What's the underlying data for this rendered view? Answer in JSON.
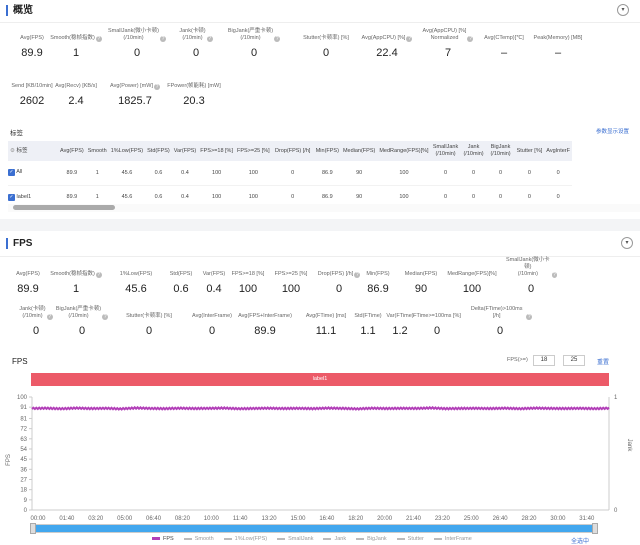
{
  "overview": {
    "title": "概览",
    "collapse_icon": "chevron-down-icon",
    "metrics_row1": [
      {
        "label": "Avg(FPS)",
        "value": "89.9"
      },
      {
        "label": "Smooth(稳帧指数)",
        "value": "1",
        "help": true
      },
      {
        "label": "SmallJank(微小卡顿)\n(/10min)",
        "value": "0",
        "help": true
      },
      {
        "label": "Jank(卡顿)\n(/10min)",
        "value": "0",
        "help": true
      },
      {
        "label": "BigJank(严重卡顿)\n(/10min)",
        "value": "0",
        "help": true
      },
      {
        "label": "Stutter(卡顿率) [%]",
        "value": "0"
      },
      {
        "label": "Avg(AppCPU) [%]",
        "value": "22.4",
        "help": true
      },
      {
        "label": "Avg(AppCPU) [%]\nNormalized",
        "value": "7",
        "help": true
      },
      {
        "label": "Avg(CTemp)[℃]",
        "value": "–"
      },
      {
        "label": "Peak(Memory) [MB]",
        "value": "–"
      }
    ],
    "metrics_row2": [
      {
        "label": "Send [KB/10min]",
        "value": "2602"
      },
      {
        "label": "Avg(Recv) [KB/s]",
        "value": "2.4"
      },
      {
        "label": "Avg(Power) [mW]",
        "value": "1825.7",
        "help": true
      },
      {
        "label": "FPower(帧能耗) [mW]",
        "value": "20.3"
      }
    ]
  },
  "labels_table": {
    "title": "标签",
    "settings_link": "参数显示设置",
    "columns": [
      "标签",
      "Avg(FPS)",
      "Smooth",
      "1%Low(FPS)",
      "Std(FPS)",
      "Var(FPS)",
      "FPS>=18 [%]",
      "FPS>=25 [%]",
      "Drop(FPS) [/h]",
      "Min(FPS)",
      "Median(FPS)",
      "MedRange(FPS)[%]",
      "SmallJank\n(/10min)",
      "Jank\n(/10min)",
      "BigJank\n(/10min)",
      "Stutter [%]",
      "AvgInterF"
    ],
    "rows": [
      {
        "checked": true,
        "cells": [
          "All",
          "89.9",
          "1",
          "45.6",
          "0.6",
          "0.4",
          "100",
          "100",
          "0",
          "86.9",
          "90",
          "100",
          "0",
          "0",
          "0",
          "0",
          "0"
        ]
      },
      {
        "checked": true,
        "cells": [
          "label1",
          "89.9",
          "1",
          "45.6",
          "0.6",
          "0.4",
          "100",
          "100",
          "0",
          "86.9",
          "90",
          "100",
          "0",
          "0",
          "0",
          "0",
          "0"
        ]
      }
    ]
  },
  "fps_section": {
    "title": "FPS",
    "metrics_row1": [
      {
        "label": "Avg(FPS)",
        "value": "89.9"
      },
      {
        "label": "Smooth(稳帧指数)",
        "value": "1",
        "help": true
      },
      {
        "label": "1%Low(FPS)",
        "value": "45.6"
      },
      {
        "label": "Std(FPS)",
        "value": "0.6"
      },
      {
        "label": "Var(FPS)",
        "value": "0.4"
      },
      {
        "label": "FPS>=18 [%]",
        "value": "100"
      },
      {
        "label": "FPS>=25 [%]",
        "value": "100"
      },
      {
        "label": "Drop(FPS) [/h]",
        "value": "0",
        "help": true
      },
      {
        "label": "Min(FPS)",
        "value": "86.9"
      },
      {
        "label": "Median(FPS)",
        "value": "90"
      },
      {
        "label": "MedRange(FPS)[%]",
        "value": "100"
      },
      {
        "label": "SmallJank(微小卡顿)\n(/10min)",
        "value": "0",
        "help": true
      }
    ],
    "metrics_row2": [
      {
        "label": "Jank(卡顿)\n(/10min)",
        "value": "0",
        "help": true
      },
      {
        "label": "BigJank(严重卡顿)\n(/10min)",
        "value": "0",
        "help": true
      },
      {
        "label": "Stutter(卡顿率) [%]",
        "value": "0"
      },
      {
        "label": "Avg(InterFrame)",
        "value": "0"
      },
      {
        "label": "Avg(FPS+InterFrame)",
        "value": "89.9"
      },
      {
        "label": "Avg(FTime) [ms]",
        "value": "11.1"
      },
      {
        "label": "Std(FTime)",
        "value": "1.1"
      },
      {
        "label": "Var(FTime)",
        "value": "1.2"
      },
      {
        "label": "FTime>=100ms [%]",
        "value": "0"
      },
      {
        "label": "Delta(FTime)>100ms [/h]",
        "value": "0",
        "help": true
      }
    ]
  },
  "chart_panel": {
    "title": "FPS",
    "threshold_label": "FPS(>=)",
    "threshold1": "18",
    "threshold2": "25",
    "reset": "重置",
    "label_bar": "label1",
    "label_color": "#ec5a68",
    "select_all": "全选中"
  },
  "chart_data": {
    "type": "line",
    "ylabel": "FPS",
    "y2label": "Jank",
    "ylim": [
      0,
      100
    ],
    "y2lim": [
      0,
      1
    ],
    "yticks": [
      "0",
      "9",
      "18",
      "27",
      "36",
      "45",
      "54",
      "63",
      "72",
      "81",
      "91",
      "100"
    ],
    "y2ticks": [
      "0",
      "1"
    ],
    "xticks": [
      "00:00",
      "01:40",
      "03:20",
      "05:00",
      "06:40",
      "08:20",
      "10:00",
      "11:40",
      "13:20",
      "15:00",
      "16:40",
      "18:20",
      "20:00",
      "21:40",
      "23:20",
      "25:00",
      "26:40",
      "28:20",
      "30:00",
      "31:40"
    ],
    "series": [
      {
        "name": "FPS",
        "color": "#b23fb8",
        "values": [
          89.9,
          90.1,
          89.6,
          90.2,
          89.8,
          90.0,
          89.5,
          90.3,
          89.9,
          89.7,
          90.1,
          89.8,
          90.0,
          90.2,
          89.6,
          89.9,
          90.1,
          89.8,
          90.0,
          89.7,
          90.2,
          89.9,
          89.5,
          90.1,
          89.8,
          90.0,
          89.9,
          90.3,
          89.7,
          89.9,
          90.0,
          89.8,
          90.1,
          89.6,
          90.2,
          89.9,
          89.8,
          90.0,
          89.7,
          90.1
        ]
      }
    ],
    "legend": [
      {
        "name": "FPS",
        "active": true,
        "color": "#b23fb8"
      },
      {
        "name": "Smooth"
      },
      {
        "name": "1%Low(FPS)"
      },
      {
        "name": "SmallJank"
      },
      {
        "name": "Jank"
      },
      {
        "name": "BigJank"
      },
      {
        "name": "Stutter"
      },
      {
        "name": "InterFrame"
      }
    ],
    "grid": false
  }
}
